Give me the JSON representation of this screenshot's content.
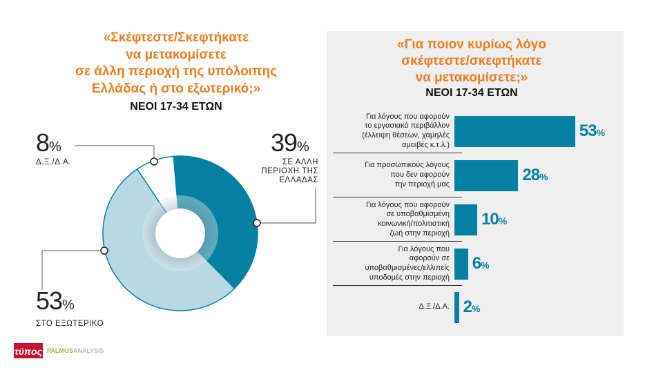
{
  "left": {
    "title_lines": [
      "«Σκέφτεστε/Σκεφτήκατε",
      "να μετακομίσετε",
      "σε άλλη περιοχή της υπόλοιπης",
      "Ελλάδας ή στο εξωτερικό;»"
    ],
    "subtitle": "ΝΕΟΙ 17-34 ΕΤΩΝ"
  },
  "right": {
    "title_lines": [
      "«Για ποιον κυρίως λόγο",
      "σκέφτεστε/σκεφτήκατε",
      "να μετακομίσετε;»"
    ],
    "subtitle": "ΝΕΟΙ 17-34 ΕΤΩΝ"
  },
  "logos": {
    "newspaper": "τύπος",
    "analysis": "PALMOS",
    "analysis2": "ANALYSIS"
  },
  "chart_data": [
    {
      "type": "pie",
      "donut": true,
      "slices": [
        {
          "label": "ΣΕ ΑΛΛΗ ΠΕΡΙΟΧΗ ΤΗΣ ΕΛΛΑΔΑΣ",
          "num": "39",
          "value": 39,
          "color": "#0580a1"
        },
        {
          "label": "ΣΤΟ ΕΞΩΤΕΡΙΚΟ",
          "num": "53",
          "value": 53,
          "color": "#b8d8e4"
        },
        {
          "label": "Δ.Ξ./Δ.Α.",
          "num": "8",
          "value": 8,
          "color": "#ffffff"
        }
      ],
      "unit": "%"
    },
    {
      "type": "bar",
      "orientation": "horizontal",
      "unit": "%",
      "categories": [
        [
          "Για λόγους που αφορούν",
          "το εργασιακό περιβάλλον",
          "(έλλειψη θέσεων, χαμηλές",
          "αμοιβές κ.τ.λ.)"
        ],
        [
          "Για προσωπικούς λόγους",
          "που δεν αφορούν",
          "την περιοχή μας"
        ],
        [
          "Για λόγους που αφορούν",
          "σε υποβαθμισμένη",
          "κοινωνική/πολιτιστική",
          "ζωή στην περιοχή"
        ],
        [
          "Για λόγους που",
          "αφορούν σε",
          "υποβαθμισμένες/ελλιπείς",
          "υποδομές στην περιοχή"
        ],
        [
          "Δ.Ξ./Δ.Α."
        ]
      ],
      "values": [
        53,
        28,
        10,
        6,
        2
      ],
      "color": "#0580a1"
    }
  ]
}
